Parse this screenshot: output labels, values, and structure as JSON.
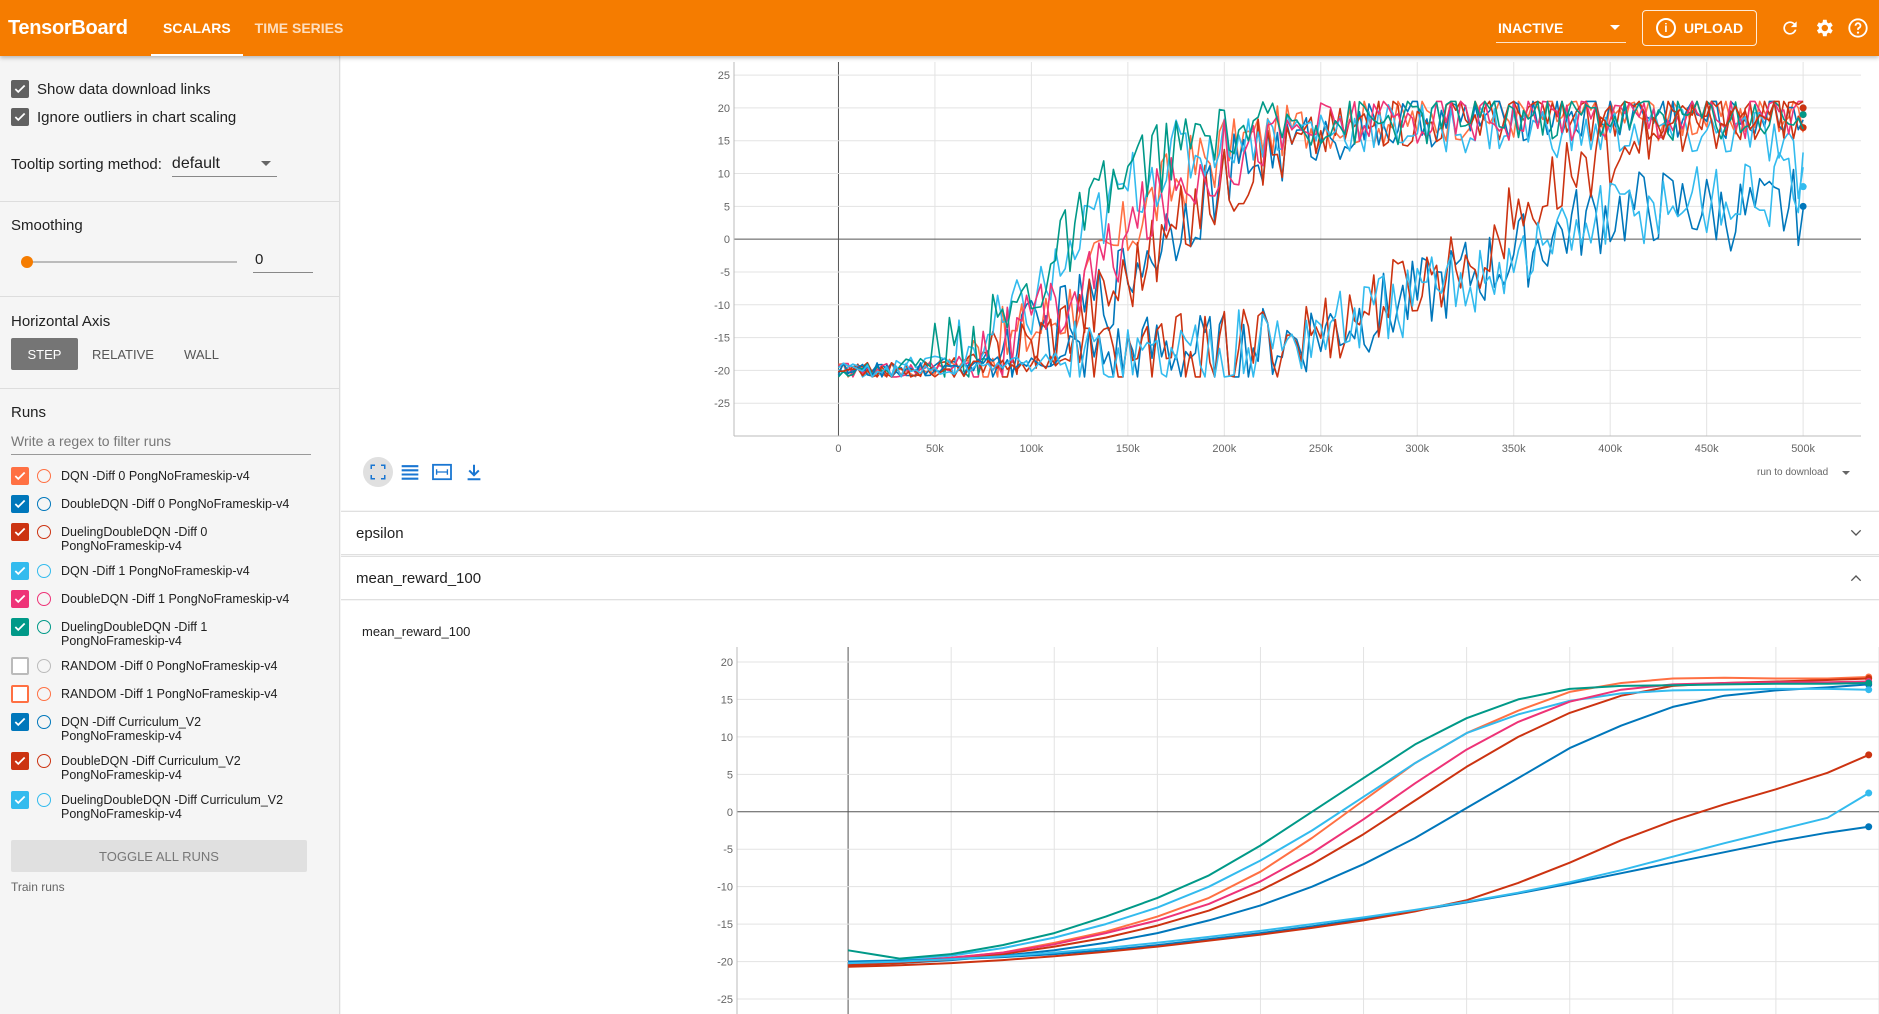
{
  "header": {
    "brand": "TensorBoard",
    "tabs": [
      {
        "label": "SCALARS"
      },
      {
        "label": "TIME SERIES"
      }
    ],
    "status": "INACTIVE",
    "upload_label": "UPLOAD",
    "icons": [
      "refresh-icon",
      "gear-icon",
      "help-icon"
    ]
  },
  "sidebar": {
    "show_download": "Show data download links",
    "ignore_outliers": "Ignore outliers in chart scaling",
    "tooltip_label": "Tooltip sorting method:",
    "tooltip_value": "default",
    "smoothing_label": "Smoothing",
    "smoothing_value": "0",
    "haxis_label": "Horizontal Axis",
    "haxis_options": [
      "STEP",
      "RELATIVE",
      "WALL"
    ],
    "runs_label": "Runs",
    "filter_placeholder": "Write a regex to filter runs",
    "runs": [
      {
        "label": "DQN -Diff 0 PongNoFrameskip-v4",
        "color": "#ff7043",
        "checked": true
      },
      {
        "label": "DoubleDQN -Diff 0 PongNoFrameskip-v4",
        "color": "#0077bb",
        "checked": true
      },
      {
        "label": "DuelingDoubleDQN -Diff 0 PongNoFrameskip-v4",
        "color": "#cc3311",
        "checked": true
      },
      {
        "label": "DQN -Diff 1 PongNoFrameskip-v4",
        "color": "#33bbee",
        "checked": true
      },
      {
        "label": "DoubleDQN -Diff 1 PongNoFrameskip-v4",
        "color": "#ee3377",
        "checked": true
      },
      {
        "label": "DuelingDoubleDQN -Diff 1 PongNoFrameskip-v4",
        "color": "#009988",
        "checked": true
      },
      {
        "label": "RANDOM -Diff 0 PongNoFrameskip-v4",
        "color": "#bbbbbb",
        "checked": false
      },
      {
        "label": "RANDOM -Diff 1 PongNoFrameskip-v4",
        "color": "#ff7043",
        "checked": false
      },
      {
        "label": "DQN -Diff Curriculum_V2 PongNoFrameskip-v4",
        "color": "#0077bb",
        "checked": true
      },
      {
        "label": "DoubleDQN -Diff Curriculum_V2 PongNoFrameskip-v4",
        "color": "#cc3311",
        "checked": true
      },
      {
        "label": "DuelingDoubleDQN -Diff Curriculum_V2 PongNoFrameskip-v4",
        "color": "#33bbee",
        "checked": true
      }
    ],
    "toggle_all": "TOGGLE ALL RUNS",
    "note": "Train runs"
  },
  "main": {
    "panels": [
      {
        "label": "epsilon"
      },
      {
        "label": "mean_reward_100"
      }
    ],
    "download_select": "run to download"
  },
  "chart_data": [
    {
      "type": "line",
      "title": "",
      "xlabel": "",
      "ylabel": "",
      "xlim": [
        -50000,
        530000
      ],
      "ylim": [
        -30,
        27
      ],
      "x_ticks": [
        "0",
        "50k",
        "100k",
        "150k",
        "200k",
        "250k",
        "300k",
        "350k",
        "400k",
        "450k",
        "500k"
      ],
      "y_ticks": [
        "25",
        "20",
        "15",
        "10",
        "5",
        "0",
        "-5",
        "-10",
        "-15",
        "-20",
        "-25"
      ],
      "grid": true,
      "x": [
        0,
        20000,
        40000,
        60000,
        80000,
        100000,
        120000,
        140000,
        160000,
        180000,
        200000,
        220000,
        240000,
        260000,
        280000,
        300000,
        320000,
        340000,
        360000,
        380000,
        400000,
        420000,
        440000,
        460000,
        480000,
        500000
      ],
      "series": [
        {
          "color": "#ff7043",
          "values": [
            -20,
            -20,
            -20,
            -19,
            -17,
            -14,
            -10,
            -3,
            5,
            10,
            14,
            16,
            17,
            18,
            18,
            18,
            19,
            19,
            19,
            19,
            19,
            19,
            19,
            19,
            19,
            20
          ]
        },
        {
          "color": "#0077bb",
          "values": [
            -20,
            -20,
            -20,
            -19,
            -18,
            -15,
            -12,
            -8,
            -2,
            4,
            9,
            13,
            15,
            16,
            17,
            18,
            18,
            19,
            19,
            19,
            19,
            19,
            19,
            19,
            19,
            20
          ]
        },
        {
          "color": "#cc3311",
          "values": [
            -20,
            -20,
            -20,
            -19,
            -18,
            -16,
            -12,
            -8,
            -3,
            3,
            9,
            13,
            15,
            17,
            18,
            18,
            19,
            19,
            19,
            19,
            19,
            19,
            19,
            19,
            19,
            17
          ]
        },
        {
          "color": "#33bbee",
          "values": [
            -20,
            -20,
            -19,
            -18,
            -15,
            -10,
            -3,
            5,
            10,
            13,
            15,
            16,
            17,
            17,
            17,
            17,
            17,
            17,
            17,
            16,
            16,
            17,
            16,
            16,
            16,
            8
          ]
        },
        {
          "color": "#ee3377",
          "values": [
            -20,
            -20,
            -20,
            -19,
            -17,
            -14,
            -9,
            -3,
            4,
            9,
            13,
            15,
            17,
            18,
            18,
            18,
            19,
            19,
            19,
            19,
            19,
            19,
            19,
            19,
            19,
            19
          ]
        },
        {
          "color": "#009988",
          "values": [
            -20,
            -20,
            -19,
            -17,
            -14,
            -8,
            0,
            7,
            12,
            15,
            16,
            17,
            18,
            18,
            18,
            18,
            19,
            19,
            19,
            19,
            19,
            19,
            19,
            19,
            19,
            19
          ]
        },
        {
          "color": "#0077bb",
          "values": [
            -20,
            -20,
            -20,
            -20,
            -19,
            -19,
            -18,
            -18,
            -17,
            -17,
            -17,
            -16,
            -15,
            -13,
            -11,
            -9,
            -6,
            -4,
            -1,
            2,
            4,
            5,
            5,
            4,
            4,
            5
          ]
        },
        {
          "color": "#cc3311",
          "values": [
            -20,
            -20,
            -20,
            -20,
            -19,
            -19,
            -18,
            -18,
            -17,
            -17,
            -17,
            -16,
            -15,
            -13,
            -10,
            -7,
            -4,
            0,
            5,
            10,
            14,
            16,
            17,
            18,
            18,
            20
          ]
        },
        {
          "color": "#33bbee",
          "values": [
            -20,
            -20,
            -20,
            -20,
            -19,
            -19,
            -18,
            -18,
            -18,
            -17,
            -17,
            -16,
            -15,
            -13,
            -11,
            -9,
            -7,
            -4,
            -2,
            1,
            4,
            5,
            6,
            6,
            7,
            8
          ]
        }
      ]
    },
    {
      "type": "line",
      "title": "mean_reward_100",
      "xlabel": "",
      "ylabel": "",
      "xlim": [
        -50000,
        500000
      ],
      "ylim": [
        -27,
        22
      ],
      "y_ticks": [
        "20",
        "15",
        "10",
        "5",
        "0",
        "-5",
        "-10",
        "-15",
        "-20",
        "-25"
      ],
      "grid": true,
      "x": [
        0,
        25000,
        50000,
        75000,
        100000,
        125000,
        150000,
        175000,
        200000,
        225000,
        250000,
        275000,
        300000,
        325000,
        350000,
        375000,
        400000,
        425000,
        450000,
        475000,
        495000
      ],
      "series": [
        {
          "color": "#ff7043",
          "values": [
            -20.5,
            -20,
            -19.5,
            -18.8,
            -17.5,
            -16,
            -14,
            -11.5,
            -8,
            -3.5,
            1.5,
            6.5,
            10.5,
            13.5,
            16,
            17.2,
            17.8,
            17.9,
            17.8,
            17.8,
            18
          ]
        },
        {
          "color": "#0077bb",
          "values": [
            -20.5,
            -20.2,
            -19.8,
            -19.2,
            -18.5,
            -17.5,
            -16.2,
            -14.5,
            -12.5,
            -10,
            -7,
            -3.5,
            0.5,
            4.5,
            8.5,
            11.5,
            14,
            15.5,
            16.2,
            16.6,
            17
          ]
        },
        {
          "color": "#cc3311",
          "values": [
            -20.5,
            -20.2,
            -19.7,
            -19,
            -18,
            -16.8,
            -15.2,
            -13.2,
            -10.5,
            -7,
            -3,
            1.5,
            6,
            10,
            13.2,
            15.5,
            16.8,
            17.2,
            17.4,
            17.6,
            17.8
          ]
        },
        {
          "color": "#33bbee",
          "values": [
            -20,
            -19.8,
            -19.2,
            -18.2,
            -16.8,
            -15,
            -12.8,
            -10,
            -6.5,
            -2.5,
            2,
            6.5,
            10.5,
            13,
            14.8,
            15.8,
            16.2,
            16.3,
            16.4,
            16.4,
            16.3
          ]
        },
        {
          "color": "#ee3377",
          "values": [
            -20.2,
            -20,
            -19.5,
            -18.8,
            -17.7,
            -16.2,
            -14.5,
            -12.3,
            -9.3,
            -5.5,
            -1,
            3.8,
            8.3,
            12,
            14.7,
            16.3,
            17,
            17.2,
            17.3,
            17.3,
            17.4
          ]
        },
        {
          "color": "#009988",
          "values": [
            -18.5,
            -19.6,
            -19,
            -17.8,
            -16.2,
            -14,
            -11.5,
            -8.5,
            -4.5,
            0,
            4.5,
            9,
            12.5,
            15,
            16.4,
            16.8,
            16.9,
            17,
            17.1,
            17.1,
            17.2
          ]
        },
        {
          "color": "#0077bb",
          "values": [
            -20,
            -19.9,
            -19.7,
            -19.4,
            -19,
            -18.5,
            -17.8,
            -17,
            -16.2,
            -15.3,
            -14.3,
            -13.2,
            -12.1,
            -10.9,
            -9.6,
            -8.2,
            -6.8,
            -5.4,
            -4,
            -2.8,
            -2
          ]
        },
        {
          "color": "#cc3311",
          "values": [
            -20.7,
            -20.5,
            -20.2,
            -19.8,
            -19.3,
            -18.7,
            -18,
            -17.2,
            -16.4,
            -15.5,
            -14.5,
            -13.3,
            -11.8,
            -9.5,
            -6.8,
            -3.8,
            -1.2,
            1,
            3,
            5.2,
            7.6
          ]
        },
        {
          "color": "#33bbee",
          "values": [
            -20.2,
            -20,
            -19.7,
            -19.3,
            -18.8,
            -18.2,
            -17.5,
            -16.7,
            -15.9,
            -15,
            -14.1,
            -13.1,
            -12,
            -10.8,
            -9.4,
            -7.8,
            -6,
            -4.2,
            -2.5,
            -0.8,
            2.5
          ]
        }
      ]
    }
  ]
}
